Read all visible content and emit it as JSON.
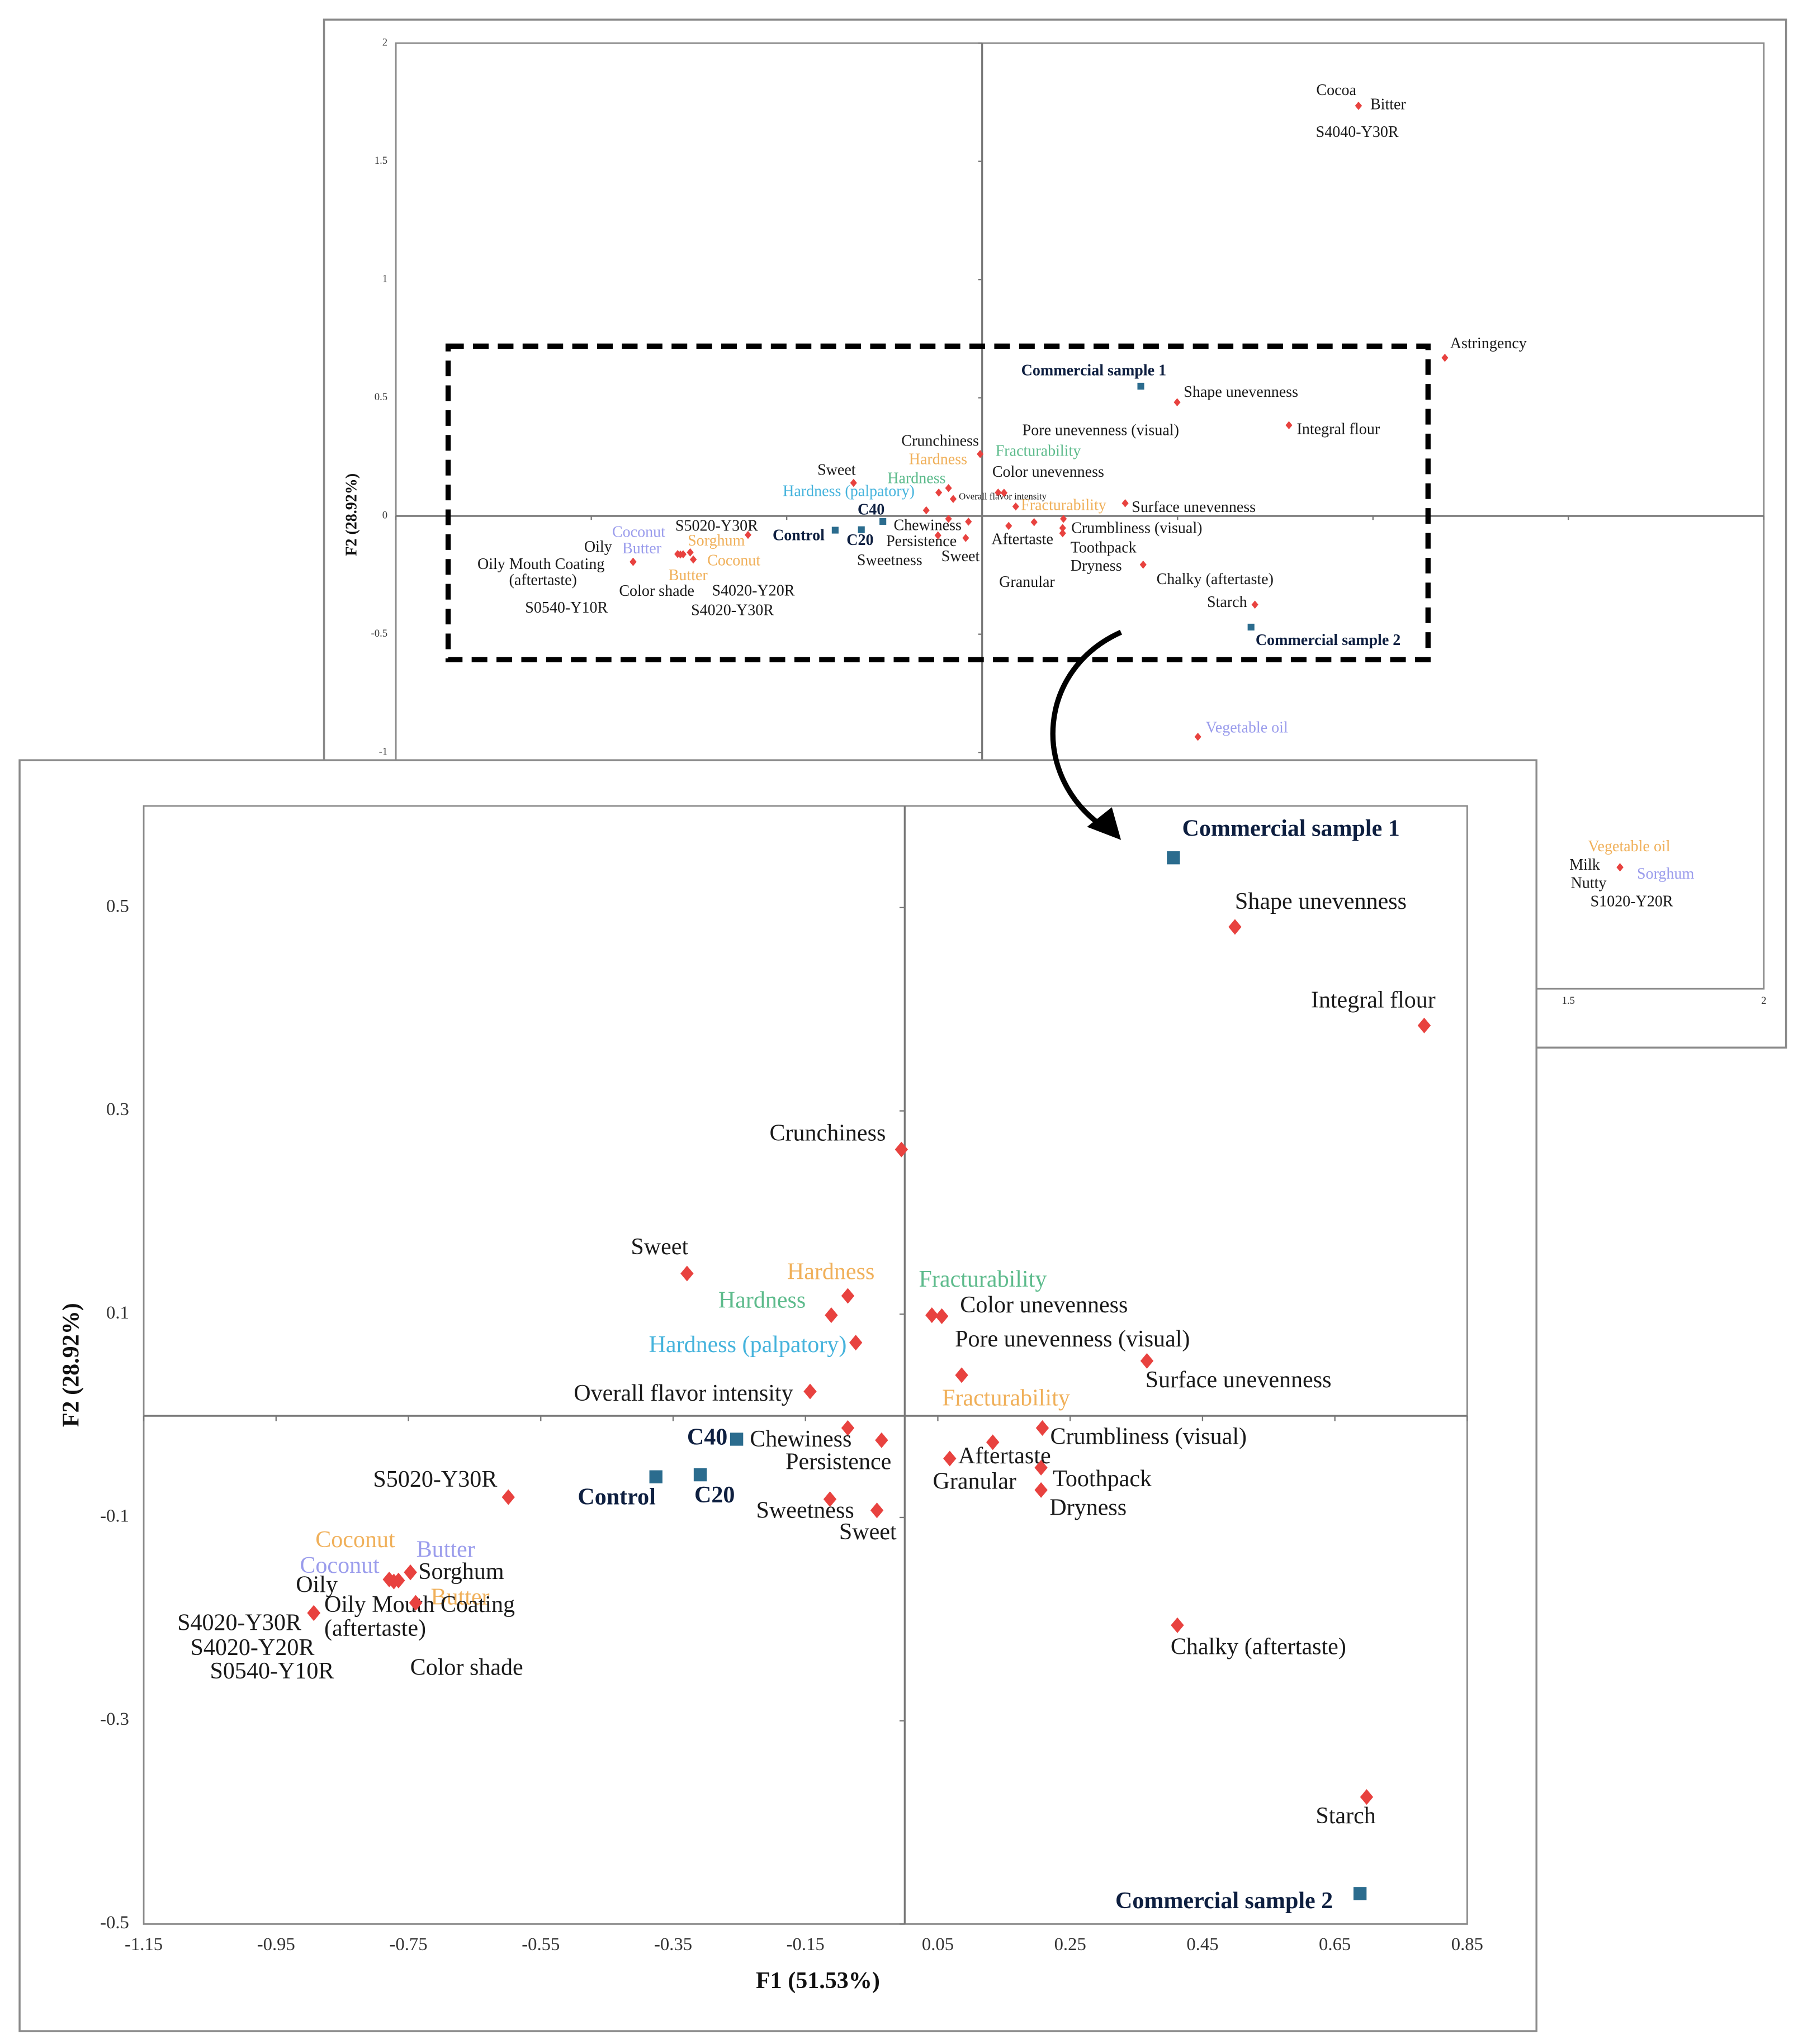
{
  "chart_data": [
    {
      "type": "scatter",
      "ylabel": "F2 (28.92%)",
      "xlim": [
        -1.5,
        2
      ],
      "ylim": [
        -2,
        2
      ],
      "xticks": [
        -1.5,
        -1,
        -0.5,
        0,
        0.5,
        1,
        1.5,
        2
      ],
      "yticks": [
        -2,
        -1.5,
        -1,
        -0.5,
        0,
        0.5,
        1,
        1.5,
        2
      ],
      "series": [
        {
          "marker": "diamond",
          "color": "#e8423f",
          "labels": [
            "Cocoa",
            "Bitter",
            "S4040-Y30R",
            "Astringency",
            "Shape unevenness",
            "Integral flour",
            "Vegetable oil",
            "Vegetable oil",
            "Milk",
            "Nutty",
            "Sorghum",
            "S1020-Y20R",
            "Starch",
            "Chalky (aftertaste)",
            "Crunchiness",
            "Hardness",
            "Fracturability",
            "Sweet",
            "Hardness",
            "Color unevenness",
            "Hardness (palpatory)",
            "Overall flavor intensity",
            "Fracturability",
            "Surface unevenness",
            "Pore unevenness (visual)",
            "S5020-Y30R",
            "Chewiness",
            "Persistence",
            "Sweetness",
            "Sweet",
            "Aftertaste",
            "Crumbliness (visual)",
            "Toothpack",
            "Dryness",
            "Granular",
            "Coconut",
            "Sorghum",
            "Oily",
            "Butter",
            "Coconut",
            "Oily Mouth Coating (aftertaste)",
            "Butter",
            "Color shade",
            "S4020-Y20R",
            "S4020-Y30R",
            "S0540-Y10R"
          ],
          "label_colors": [
            "#1a1a1a",
            "#1a1a1a",
            "#1a1a1a",
            "#1a1a1a",
            "#1a1a1a",
            "#1a1a1a",
            "#9a9cec",
            "#f0b05a",
            "#1a1a1a",
            "#1a1a1a",
            "#9a9cec",
            "#1a1a1a",
            "#1a1a1a",
            "#1a1a1a",
            "#1a1a1a",
            "#f0b05a",
            "#5dbb8c",
            "#1a1a1a",
            "#5dbb8c",
            "#1a1a1a",
            "#45b3dc",
            "#1a1a1a",
            "#f0b05a",
            "#1a1a1a",
            "#1a1a1a",
            "#1a1a1a",
            "#1a1a1a",
            "#1a1a1a",
            "#1a1a1a",
            "#1a1a1a",
            "#1a1a1a",
            "#1a1a1a",
            "#1a1a1a",
            "#1a1a1a",
            "#1a1a1a",
            "#9a9cec",
            "#f0b05a",
            "#1a1a1a",
            "#9a9cec",
            "#f0b05a",
            "#1a1a1a",
            "#f0b05a",
            "#1a1a1a",
            "#1a1a1a",
            "#1a1a1a",
            "#1a1a1a"
          ],
          "x": [
            0.963,
            0.963,
            0.963,
            1.184,
            0.499,
            0.785,
            0.552,
            1.632,
            1.632,
            1.632,
            1.632,
            1.632,
            0.698,
            0.412,
            -0.005,
            -0.086,
            0.041,
            -0.329,
            -0.111,
            0.056,
            -0.074,
            -0.143,
            0.086,
            0.366,
            0.056,
            -0.599,
            -0.086,
            -0.035,
            -0.113,
            -0.042,
            0.133,
            0.208,
            0.206,
            0.206,
            0.068,
            -0.765,
            -0.747,
            -0.772,
            -0.747,
            -0.779,
            -0.893,
            -0.739,
            -0.739,
            -0.893,
            -0.893,
            -0.893
          ],
          "values": [
            1.735,
            1.735,
            1.735,
            0.669,
            0.481,
            0.384,
            -0.934,
            -1.486,
            -1.486,
            -1.486,
            -1.486,
            -1.486,
            -0.375,
            -0.206,
            0.262,
            0.118,
            0.099,
            0.14,
            0.099,
            0.098,
            0.072,
            0.024,
            0.04,
            0.054,
            0.098,
            -0.08,
            -0.012,
            -0.024,
            -0.082,
            -0.093,
            -0.026,
            -0.012,
            -0.051,
            -0.073,
            -0.042,
            -0.162,
            -0.154,
            -0.163,
            -0.154,
            -0.161,
            -0.194,
            -0.184,
            -0.184,
            -0.194,
            -0.194,
            -0.194
          ]
        },
        {
          "marker": "square",
          "color": "#2b6c8e",
          "labels": [
            "Commercial sample 1",
            "Commercial sample 2",
            "C40",
            "C20",
            "Control"
          ],
          "label_colors": [
            "#0e1f40",
            "#0e1f40",
            "#0e1f40",
            "#0e1f40",
            "#0e1f40"
          ],
          "x": [
            0.406,
            0.688,
            -0.254,
            -0.309,
            -0.376
          ],
          "values": [
            0.549,
            -0.47,
            -0.023,
            -0.058,
            -0.06
          ]
        }
      ]
    },
    {
      "type": "scatter",
      "xlabel": "F1 (51.53%)",
      "ylabel": "F2 (28.92%)",
      "xlim": [
        -1.15,
        0.85
      ],
      "ylim": [
        -0.5,
        0.6
      ],
      "xticks": [
        -1.15,
        -0.95,
        -0.75,
        -0.55,
        -0.35,
        -0.15,
        0.05,
        0.25,
        0.45,
        0.65,
        0.85
      ],
      "yticks": [
        -0.5,
        -0.3,
        -0.1,
        0.1,
        0.3,
        0.5
      ],
      "series": [
        {
          "marker": "diamond",
          "color": "#e8423f",
          "labels": [
            "Shape unevenness",
            "Integral flour",
            "Crunchiness",
            "Sweet",
            "Hardness",
            "Hardness",
            "Hardness (palpatory)",
            "Overall flavor intensity",
            "Fracturability",
            "Color unevenness",
            "Pore unevenness (visual)",
            "Fracturability",
            "Surface unevenness",
            "Chewiness",
            "Persistence",
            "Crumbliness (visual)",
            "Aftertaste",
            "Granular",
            "Toothpack",
            "Dryness",
            "Sweetness",
            "Sweet",
            "S5020-Y30R",
            "Chalky (aftertaste)",
            "Starch",
            "Sorghum",
            "Butter",
            "Coconut",
            "Coconut",
            "Oily",
            "Butter",
            "Oily Mouth Coating (aftertaste)",
            "S4020-Y30R",
            "S4020-Y20R",
            "S0540-Y10R",
            "Color shade"
          ],
          "label_colors": [
            "#1a1a1a",
            "#1a1a1a",
            "#1a1a1a",
            "#1a1a1a",
            "#f0b05a",
            "#5dbb8c",
            "#45b3dc",
            "#1a1a1a",
            "#5dbb8c",
            "#1a1a1a",
            "#1a1a1a",
            "#f0b05a",
            "#1a1a1a",
            "#1a1a1a",
            "#1a1a1a",
            "#1a1a1a",
            "#1a1a1a",
            "#1a1a1a",
            "#1a1a1a",
            "#1a1a1a",
            "#1a1a1a",
            "#1a1a1a",
            "#1a1a1a",
            "#1a1a1a",
            "#1a1a1a",
            "#1a1a1a",
            "#9a9cec",
            "#f0b05a",
            "#9a9cec",
            "#1a1a1a",
            "#f0b05a",
            "#1a1a1a",
            "#1a1a1a",
            "#1a1a1a",
            "#1a1a1a",
            "#1a1a1a"
          ],
          "x": [
            0.499,
            0.785,
            -0.005,
            -0.329,
            -0.086,
            -0.111,
            -0.074,
            -0.143,
            0.041,
            0.056,
            0.056,
            0.086,
            0.366,
            -0.086,
            -0.035,
            0.208,
            0.133,
            0.068,
            0.206,
            0.206,
            -0.113,
            -0.042,
            -0.599,
            0.412,
            0.698,
            -0.747,
            -0.747,
            -0.779,
            -0.765,
            -0.772,
            -0.739,
            -0.893,
            -0.893,
            -0.893,
            -0.893,
            -0.739
          ],
          "values": [
            0.481,
            0.384,
            0.262,
            0.14,
            0.118,
            0.099,
            0.072,
            0.024,
            0.099,
            0.098,
            0.098,
            0.04,
            0.054,
            -0.012,
            -0.024,
            -0.012,
            -0.026,
            -0.042,
            -0.051,
            -0.073,
            -0.082,
            -0.093,
            -0.08,
            -0.206,
            -0.375,
            -0.154,
            -0.154,
            -0.161,
            -0.162,
            -0.163,
            -0.184,
            -0.194,
            -0.194,
            -0.194,
            -0.194,
            -0.184
          ]
        },
        {
          "marker": "square",
          "color": "#2b6c8e",
          "labels": [
            "Commercial sample 1",
            "Commercial sample 2",
            "C40",
            "C20",
            "Control"
          ],
          "label_colors": [
            "#0e1f40",
            "#0e1f40",
            "#0e1f40",
            "#0e1f40",
            "#0e1f40"
          ],
          "x": [
            0.406,
            0.688,
            -0.254,
            -0.309,
            -0.376
          ],
          "values": [
            0.549,
            -0.47,
            -0.023,
            -0.058,
            -0.06
          ]
        }
      ]
    }
  ]
}
